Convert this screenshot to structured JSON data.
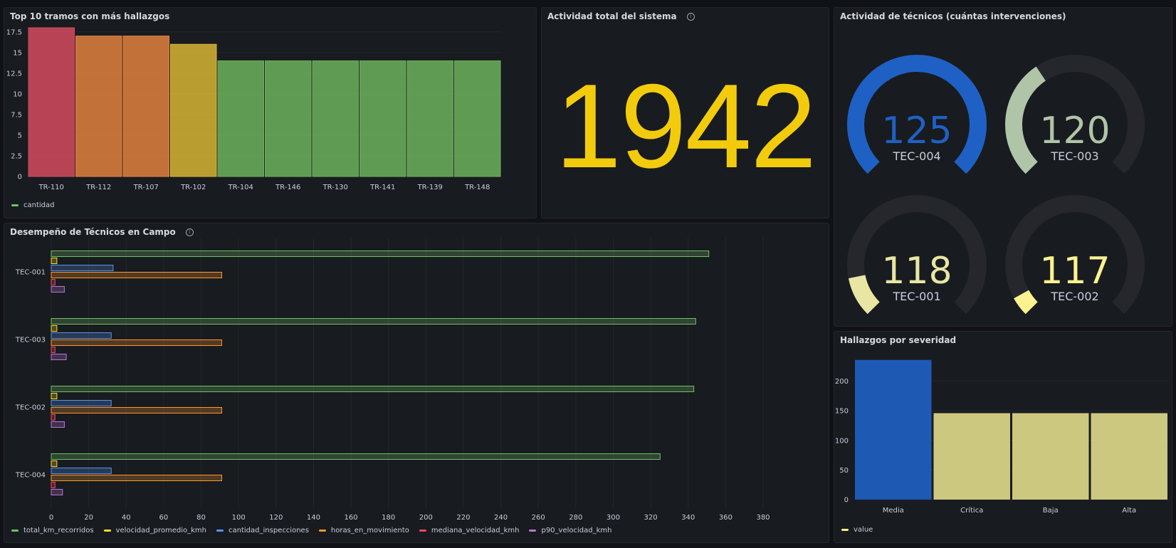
{
  "panels": {
    "top_tramos": {
      "title": "Top 10 tramos con más hallazgos",
      "legend": [
        {
          "label": "cantidad",
          "color": "#73bf69"
        }
      ],
      "chart_data": {
        "type": "bar",
        "categories": [
          "TR-110",
          "TR-112",
          "TR-107",
          "TR-102",
          "TR-104",
          "TR-146",
          "TR-130",
          "TR-141",
          "TR-139",
          "TR-148"
        ],
        "series": [
          {
            "name": "cantidad",
            "values": [
              18,
              17,
              17,
              16,
              14,
              14,
              14,
              14,
              14,
              14
            ]
          }
        ],
        "ylim": [
          0,
          18
        ],
        "yticks": [
          "0",
          "2.5",
          "5",
          "7.5",
          "10",
          "12.5",
          "15",
          "17.5"
        ],
        "bar_colors": [
          "#d44a5f",
          "#e0813e",
          "#e0813e",
          "#d7b435",
          "#6cb15c",
          "#6cb15c",
          "#6cb15c",
          "#6cb15c",
          "#6cb15c",
          "#6cb15c"
        ]
      }
    },
    "actividad_total": {
      "title": "Actividad total del sistema",
      "value": "1942",
      "color": "#f2cc0c"
    },
    "actividad_tecnicos": {
      "title": "Actividad de técnicos (cuántas intervenciones)",
      "gauges": [
        {
          "name": "TEC-004",
          "value": 125,
          "display": "125",
          "color": "#1f60c4"
        },
        {
          "name": "TEC-003",
          "value": 120,
          "display": "120",
          "color": "#b0c4a8"
        },
        {
          "name": "TEC-001",
          "value": 118,
          "display": "118",
          "color": "#e8e6a2"
        },
        {
          "name": "TEC-002",
          "value": 117,
          "display": "117",
          "color": "#fdf28f"
        }
      ],
      "gauge_min": 117,
      "gauge_max": 125,
      "track_color": "#25272d"
    },
    "desempeno": {
      "title": "Desempeño de Técnicos en Campo",
      "legend": [
        {
          "label": "total_km_recorridos",
          "color": "#73bf69"
        },
        {
          "label": "velocidad_promedio_kmh",
          "color": "#fade2a"
        },
        {
          "label": "cantidad_inspecciones",
          "color": "#5794f2"
        },
        {
          "label": "horas_en_movimiento",
          "color": "#ff9830"
        },
        {
          "label": "mediana_velocidad_kmh",
          "color": "#f2495c"
        },
        {
          "label": "p90_velocidad_kmh",
          "color": "#b877d9"
        }
      ],
      "chart_data": {
        "type": "bar",
        "orientation": "horizontal",
        "categories": [
          "TEC-001",
          "TEC-003",
          "TEC-002",
          "TEC-004"
        ],
        "series": [
          {
            "name": "total_km_recorridos",
            "values": [
              351,
              344,
              343,
              325
            ]
          },
          {
            "name": "velocidad_promedio_kmh",
            "values": [
              3,
              3,
              3,
              3
            ]
          },
          {
            "name": "cantidad_inspecciones",
            "values": [
              33,
              32,
              32,
              32
            ]
          },
          {
            "name": "horas_en_movimiento",
            "values": [
              91,
              91,
              91,
              91
            ]
          },
          {
            "name": "mediana_velocidad_kmh",
            "values": [
              2,
              2,
              2,
              2
            ]
          },
          {
            "name": "p90_velocidad_kmh",
            "values": [
              7,
              8,
              7,
              6
            ]
          }
        ],
        "xlim": [
          0,
          380
        ],
        "xticks": [
          "0",
          "20",
          "40",
          "60",
          "80",
          "100",
          "120",
          "140",
          "160",
          "180",
          "200",
          "220",
          "240",
          "260",
          "280",
          "300",
          "320",
          "340",
          "360",
          "380"
        ]
      }
    },
    "severidad": {
      "title": "Hallazgos por severidad",
      "legend": [
        {
          "label": "value",
          "color": "#fdf28f"
        }
      ],
      "chart_data": {
        "type": "bar",
        "categories": [
          "Media",
          "Crítica",
          "Baja",
          "Alta"
        ],
        "series": [
          {
            "name": "value",
            "values": [
              236,
              146,
              146,
              146
            ]
          }
        ],
        "ylim": [
          0,
          250
        ],
        "yticks": [
          "0",
          "50",
          "100",
          "150",
          "200"
        ],
        "bar_colors": [
          "#1f60c4",
          "#e1db8b",
          "#e1db8b",
          "#e1db8b"
        ]
      }
    }
  }
}
